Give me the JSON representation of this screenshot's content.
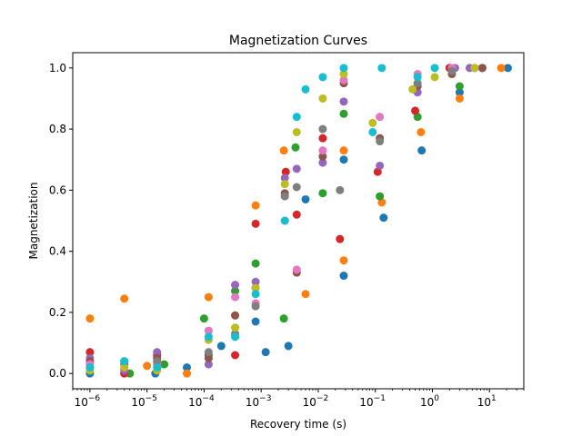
{
  "chart_data": {
    "type": "scatter",
    "title": "Magnetization Curves",
    "xlabel": "Recovery time (s)",
    "ylabel": "Magnetization",
    "xscale": "log",
    "xlim": [
      5e-07,
      40
    ],
    "ylim": [
      -0.05,
      1.05
    ],
    "x_ticks": [
      {
        "value": 1e-06,
        "base": "10",
        "exp": "−6"
      },
      {
        "value": 1e-05,
        "base": "10",
        "exp": "−5"
      },
      {
        "value": 0.0001,
        "base": "10",
        "exp": "−4"
      },
      {
        "value": 0.001,
        "base": "10",
        "exp": "−3"
      },
      {
        "value": 0.01,
        "base": "10",
        "exp": "−2"
      },
      {
        "value": 0.1,
        "base": "10",
        "exp": "−1"
      },
      {
        "value": 1,
        "base": "10",
        "exp": "0"
      },
      {
        "value": 10,
        "base": "10",
        "exp": "1"
      }
    ],
    "y_ticks": [
      "0.0",
      "0.2",
      "0.4",
      "0.6",
      "0.8",
      "1.0"
    ],
    "grid": false,
    "legend": "none",
    "series": [
      {
        "color": "#1f77b4",
        "points": [
          [
            1e-06,
            0.0
          ],
          [
            4e-06,
            0.0
          ],
          [
            1.4e-05,
            0.0
          ],
          [
            5e-05,
            0.02
          ],
          [
            0.0002,
            0.09
          ],
          [
            0.0008,
            0.17
          ],
          [
            0.0012,
            0.07
          ],
          [
            0.003,
            0.09
          ],
          [
            0.006,
            0.57
          ],
          [
            0.028,
            0.32
          ],
          [
            0.028,
            0.7
          ],
          [
            0.14,
            0.51
          ],
          [
            0.65,
            0.73
          ],
          [
            3.0,
            0.92
          ],
          [
            21,
            1.0
          ]
        ]
      },
      {
        "color": "#ff7f0e",
        "points": [
          [
            1e-06,
            0.18
          ],
          [
            4e-06,
            0.245
          ],
          [
            1e-05,
            0.025
          ],
          [
            5e-05,
            0.0
          ],
          [
            0.00012,
            0.25
          ],
          [
            0.00035,
            0.19
          ],
          [
            0.0008,
            0.55
          ],
          [
            0.0025,
            0.73
          ],
          [
            0.006,
            0.26
          ],
          [
            0.028,
            0.37
          ],
          [
            0.028,
            0.73
          ],
          [
            0.13,
            0.56
          ],
          [
            0.63,
            0.79
          ],
          [
            3.0,
            0.9
          ],
          [
            16,
            1.0
          ]
        ]
      },
      {
        "color": "#2ca02c",
        "points": [
          [
            1e-06,
            0.01
          ],
          [
            5e-06,
            0.0
          ],
          [
            2e-05,
            0.03
          ],
          [
            0.0001,
            0.18
          ],
          [
            0.00035,
            0.27
          ],
          [
            0.0008,
            0.36
          ],
          [
            0.0025,
            0.18
          ],
          [
            0.004,
            0.74
          ],
          [
            0.012,
            0.59
          ],
          [
            0.028,
            0.85
          ],
          [
            0.12,
            0.58
          ],
          [
            0.55,
            0.84
          ],
          [
            3.0,
            0.94
          ],
          [
            2.0,
            1.0
          ]
        ]
      },
      {
        "color": "#d62728",
        "points": [
          [
            1e-06,
            0.07
          ],
          [
            4e-06,
            0.0
          ],
          [
            1.5e-05,
            0.06
          ],
          [
            0.00012,
            0.06
          ],
          [
            0.00035,
            0.06
          ],
          [
            0.0008,
            0.49
          ],
          [
            0.0027,
            0.66
          ],
          [
            0.0042,
            0.52
          ],
          [
            0.012,
            0.77
          ],
          [
            0.024,
            0.44
          ],
          [
            0.11,
            0.66
          ],
          [
            0.5,
            0.86
          ],
          [
            2.0,
            1.0
          ],
          [
            7.5,
            1.0
          ]
        ]
      },
      {
        "color": "#9467bd",
        "points": [
          [
            1e-06,
            0.05
          ],
          [
            4e-06,
            0.01
          ],
          [
            1.5e-05,
            0.07
          ],
          [
            0.00012,
            0.03
          ],
          [
            0.00035,
            0.29
          ],
          [
            0.0008,
            0.3
          ],
          [
            0.0026,
            0.64
          ],
          [
            0.0042,
            0.67
          ],
          [
            0.012,
            0.69
          ],
          [
            0.028,
            0.89
          ],
          [
            0.12,
            0.68
          ],
          [
            0.55,
            0.92
          ],
          [
            2.5,
            1.0
          ],
          [
            4.5,
            1.0
          ]
        ]
      },
      {
        "color": "#8c564b",
        "points": [
          [
            1e-06,
            0.04
          ],
          [
            4e-06,
            0.03
          ],
          [
            1.5e-05,
            0.05
          ],
          [
            0.00012,
            0.05
          ],
          [
            0.00035,
            0.19
          ],
          [
            0.0008,
            0.28
          ],
          [
            0.0026,
            0.59
          ],
          [
            0.0042,
            0.33
          ],
          [
            0.012,
            0.71
          ],
          [
            0.028,
            0.95
          ],
          [
            0.12,
            0.77
          ],
          [
            0.55,
            0.94
          ],
          [
            2.2,
            0.98
          ],
          [
            7.5,
            1.0
          ]
        ]
      },
      {
        "color": "#e377c2",
        "points": [
          [
            1e-06,
            0.03
          ],
          [
            4e-06,
            0.02
          ],
          [
            1.5e-05,
            0.03
          ],
          [
            0.00012,
            0.14
          ],
          [
            0.00035,
            0.25
          ],
          [
            0.0008,
            0.23
          ],
          [
            0.0026,
            0.5
          ],
          [
            0.0042,
            0.34
          ],
          [
            0.012,
            0.73
          ],
          [
            0.028,
            0.96
          ],
          [
            0.12,
            0.84
          ],
          [
            0.55,
            0.98
          ],
          [
            2.2,
            1.0
          ],
          [
            5.5,
            1.0
          ]
        ]
      },
      {
        "color": "#7f7f7f",
        "points": [
          [
            1e-06,
            0.02
          ],
          [
            4e-06,
            0.04
          ],
          [
            1.5e-05,
            0.04
          ],
          [
            0.00012,
            0.07
          ],
          [
            0.00035,
            0.13
          ],
          [
            0.0008,
            0.22
          ],
          [
            0.0026,
            0.58
          ],
          [
            0.0042,
            0.61
          ],
          [
            0.012,
            0.8
          ],
          [
            0.024,
            0.6
          ],
          [
            0.12,
            0.76
          ],
          [
            0.55,
            0.95
          ],
          [
            2.2,
            0.99
          ],
          [
            5.5,
            1.0
          ]
        ]
      },
      {
        "color": "#bcbd22",
        "points": [
          [
            1e-06,
            0.01
          ],
          [
            4e-06,
            0.02
          ],
          [
            1.5e-05,
            0.01
          ],
          [
            0.00012,
            0.11
          ],
          [
            0.00035,
            0.15
          ],
          [
            0.0008,
            0.28
          ],
          [
            0.0026,
            0.62
          ],
          [
            0.0042,
            0.79
          ],
          [
            0.012,
            0.9
          ],
          [
            0.028,
            0.98
          ],
          [
            0.09,
            0.82
          ],
          [
            0.45,
            0.93
          ],
          [
            1.1,
            0.97
          ],
          [
            5.5,
            1.0
          ]
        ]
      },
      {
        "color": "#17becf",
        "points": [
          [
            1e-06,
            0.02
          ],
          [
            4e-06,
            0.04
          ],
          [
            1.5e-05,
            0.02
          ],
          [
            0.00012,
            0.12
          ],
          [
            0.00035,
            0.12
          ],
          [
            0.0008,
            0.26
          ],
          [
            0.0026,
            0.5
          ],
          [
            0.0042,
            0.84
          ],
          [
            0.006,
            0.93
          ],
          [
            0.012,
            0.97
          ],
          [
            0.028,
            1.0
          ],
          [
            0.09,
            0.79
          ],
          [
            0.13,
            1.0
          ],
          [
            0.55,
            0.97
          ],
          [
            1.1,
            1.0
          ]
        ]
      }
    ]
  }
}
